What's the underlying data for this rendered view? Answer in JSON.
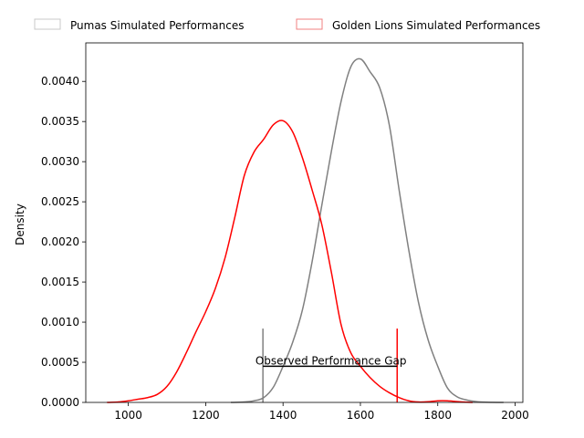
{
  "chart_data": {
    "type": "line",
    "title": "",
    "xlabel": "",
    "ylabel": "Density",
    "xlim": [
      890,
      2020
    ],
    "ylim": [
      0,
      0.00448
    ],
    "grid": false,
    "legend_position": "top",
    "x_ticks": [
      1000,
      1200,
      1400,
      1600,
      1800,
      2000
    ],
    "x_tick_labels": [
      "1000",
      "1200",
      "1400",
      "1600",
      "1800",
      "2000"
    ],
    "y_ticks": [
      0,
      0.0005,
      0.001,
      0.0015,
      0.002,
      0.0025,
      0.003,
      0.0035,
      0.004
    ],
    "y_tick_labels": [
      "0.0000",
      "0.0005",
      "0.0010",
      "0.0015",
      "0.0020",
      "0.0025",
      "0.0030",
      "0.0035",
      "0.0040"
    ],
    "series": [
      {
        "name": "Pumas Simulated Performances",
        "color": "#808080",
        "legend_edge": "#c8c8c8",
        "x": [
          1265,
          1300,
          1325,
          1350,
          1375,
          1400,
          1425,
          1450,
          1475,
          1500,
          1525,
          1550,
          1575,
          1600,
          1625,
          1650,
          1675,
          1700,
          1725,
          1750,
          1775,
          1800,
          1825,
          1850,
          1875,
          1900,
          1925,
          1970
        ],
        "y": [
          0,
          5e-06,
          2e-05,
          6e-05,
          0.00019,
          0.00045,
          0.00075,
          0.00115,
          0.00175,
          0.00245,
          0.00313,
          0.00375,
          0.00418,
          0.00428,
          0.00412,
          0.00392,
          0.00345,
          0.00265,
          0.0019,
          0.00125,
          0.00078,
          0.00045,
          0.00018,
          7e-05,
          3e-05,
          1e-05,
          3e-06,
          0
        ]
      },
      {
        "name": "Golden Lions Simulated Performances",
        "color": "#ff0000",
        "legend_edge": "#f08080",
        "x": [
          945,
          975,
          1000,
          1025,
          1050,
          1075,
          1100,
          1125,
          1150,
          1175,
          1200,
          1225,
          1250,
          1275,
          1300,
          1325,
          1350,
          1375,
          1400,
          1425,
          1450,
          1475,
          1500,
          1525,
          1550,
          1575,
          1600,
          1625,
          1650,
          1675,
          1700,
          1725,
          1750,
          1775,
          1800,
          1825,
          1850,
          1875,
          1890
        ],
        "y": [
          0,
          5e-06,
          2e-05,
          4e-05,
          6e-05,
          0.0001,
          0.0002,
          0.00038,
          0.00062,
          0.00088,
          0.00113,
          0.00142,
          0.0018,
          0.0023,
          0.00283,
          0.00312,
          0.00328,
          0.00346,
          0.00351,
          0.00337,
          0.00305,
          0.00265,
          0.00222,
          0.00162,
          0.00097,
          0.00062,
          0.00045,
          0.00031,
          0.0002,
          0.00012,
          6e-05,
          2e-05,
          5e-06,
          8e-06,
          2e-05,
          2e-05,
          1e-05,
          3e-06,
          0
        ]
      }
    ],
    "annotations": [
      {
        "text": "Observed Performance Gap",
        "x1": 1348,
        "x2": 1695,
        "y": 0.00045,
        "x1_color": "#808080",
        "x2_color": "#ff0000",
        "line_top": 0.00092
      }
    ]
  }
}
